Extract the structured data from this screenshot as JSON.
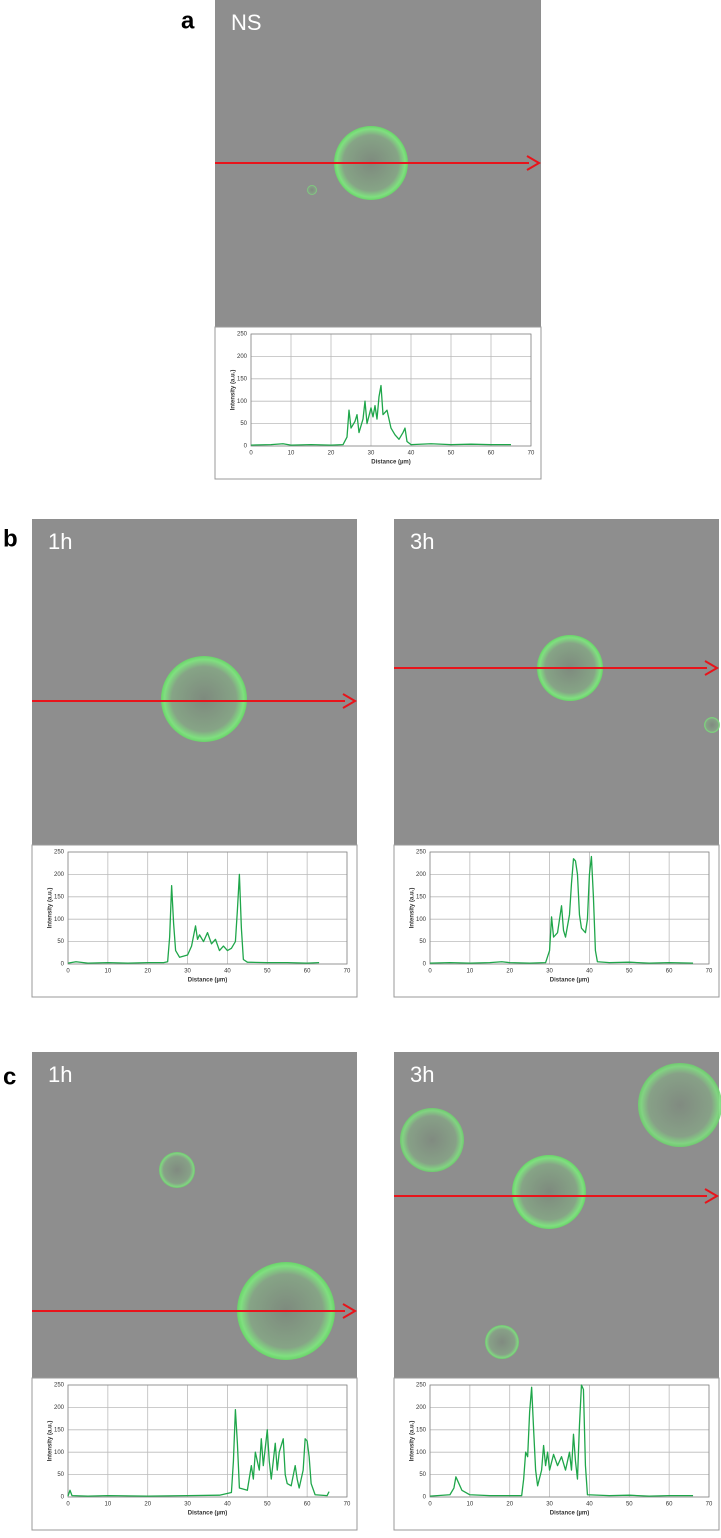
{
  "figure": {
    "panel_letters": [
      "a",
      "b",
      "c"
    ]
  },
  "chart_data": [
    {
      "type": "line",
      "label": "NS",
      "xlabel": "Distance (µm)",
      "ylabel": "Intensity (a.u.)",
      "xlim": [
        0,
        70
      ],
      "ylim": [
        0,
        250
      ],
      "xticks": [
        0,
        10,
        20,
        30,
        40,
        50,
        60,
        70
      ],
      "yticks": [
        0,
        50,
        100,
        150,
        200,
        250
      ],
      "grid": true,
      "color": "#1fa64a",
      "x": [
        0,
        5,
        8,
        10,
        15,
        20,
        23,
        24,
        24.5,
        25,
        26,
        26.5,
        27,
        28,
        28.5,
        29,
        30,
        30.5,
        31,
        31.5,
        32,
        32.5,
        33,
        34,
        35,
        36,
        37,
        38,
        38.5,
        39,
        40,
        45,
        50,
        55,
        60,
        65
      ],
      "values": [
        2,
        3,
        5,
        2,
        3,
        2,
        3,
        20,
        80,
        40,
        55,
        70,
        30,
        60,
        100,
        50,
        85,
        65,
        90,
        60,
        110,
        135,
        70,
        80,
        40,
        25,
        15,
        30,
        40,
        10,
        3,
        5,
        3,
        4,
        3,
        3
      ]
    },
    {
      "type": "line",
      "label": "1h",
      "xlabel": "Distance (µm)",
      "ylabel": "Intensity (a.u.)",
      "xlim": [
        0,
        70
      ],
      "ylim": [
        0,
        250
      ],
      "xticks": [
        0,
        10,
        20,
        30,
        40,
        50,
        60,
        70
      ],
      "yticks": [
        0,
        50,
        100,
        150,
        200,
        250
      ],
      "grid": true,
      "color": "#1fa64a",
      "x": [
        0,
        2,
        5,
        10,
        15,
        20,
        24,
        25,
        25.5,
        26,
        26.5,
        27,
        28,
        30,
        31,
        32,
        32.5,
        33,
        34,
        35,
        36,
        37,
        38,
        39,
        40,
        41,
        42,
        42.5,
        43,
        43.5,
        44,
        45,
        50,
        55,
        60,
        63
      ],
      "values": [
        2,
        5,
        2,
        3,
        2,
        3,
        3,
        5,
        60,
        175,
        90,
        30,
        15,
        20,
        40,
        85,
        55,
        65,
        50,
        70,
        45,
        55,
        30,
        40,
        30,
        35,
        50,
        120,
        200,
        80,
        10,
        4,
        3,
        3,
        2,
        3
      ]
    },
    {
      "type": "line",
      "label": "3h",
      "xlabel": "Distance (µm)",
      "ylabel": "Intensity (a.u.)",
      "xlim": [
        0,
        70
      ],
      "ylim": [
        0,
        250
      ],
      "xticks": [
        0,
        10,
        20,
        30,
        40,
        50,
        60,
        70
      ],
      "yticks": [
        0,
        50,
        100,
        150,
        200,
        250
      ],
      "grid": true,
      "color": "#1fa64a",
      "x": [
        0,
        5,
        10,
        15,
        18,
        20,
        25,
        29,
        30,
        30.5,
        31,
        32,
        32.5,
        33,
        33.5,
        34,
        35,
        35.5,
        36,
        36.5,
        37,
        37.5,
        38,
        39,
        39.5,
        40,
        40.5,
        41,
        41.5,
        42,
        45,
        50,
        55,
        60,
        66
      ],
      "values": [
        2,
        3,
        2,
        3,
        5,
        3,
        2,
        3,
        30,
        105,
        60,
        70,
        100,
        130,
        75,
        60,
        110,
        180,
        235,
        230,
        200,
        110,
        80,
        70,
        100,
        200,
        240,
        150,
        30,
        5,
        3,
        4,
        2,
        3,
        2
      ]
    },
    {
      "type": "line",
      "label": "1h",
      "xlabel": "Distance (µm)",
      "ylabel": "Intensity (a.u.)",
      "xlim": [
        0,
        70
      ],
      "ylim": [
        0,
        250
      ],
      "xticks": [
        0,
        10,
        20,
        30,
        40,
        50,
        60,
        70
      ],
      "yticks": [
        0,
        50,
        100,
        150,
        200,
        250
      ],
      "grid": true,
      "color": "#1fa64a",
      "x": [
        0,
        0.5,
        1,
        5,
        10,
        20,
        30,
        38,
        41,
        41.5,
        42,
        42.5,
        43,
        45,
        46,
        46.5,
        47,
        48,
        48.5,
        49,
        50,
        50.5,
        51,
        52,
        52.5,
        53,
        54,
        54.5,
        55,
        56,
        57,
        57.5,
        58,
        59,
        59.5,
        60,
        60.5,
        61,
        62,
        65,
        65.5
      ],
      "values": [
        2,
        15,
        3,
        2,
        3,
        2,
        3,
        4,
        10,
        80,
        195,
        120,
        20,
        15,
        70,
        40,
        100,
        60,
        130,
        70,
        150,
        80,
        40,
        120,
        60,
        100,
        130,
        50,
        30,
        25,
        70,
        40,
        20,
        60,
        130,
        125,
        90,
        30,
        5,
        3,
        12
      ]
    },
    {
      "type": "line",
      "label": "3h",
      "xlabel": "Distance (µm)",
      "ylabel": "Intensity (a.u.)",
      "xlim": [
        0,
        70
      ],
      "ylim": [
        0,
        250
      ],
      "xticks": [
        0,
        10,
        20,
        30,
        40,
        50,
        60,
        70
      ],
      "yticks": [
        0,
        50,
        100,
        150,
        200,
        250
      ],
      "grid": true,
      "color": "#1fa64a",
      "x": [
        0,
        5,
        6,
        6.5,
        7,
        8,
        9,
        10,
        15,
        20,
        23,
        23.5,
        24,
        24.5,
        25,
        25.5,
        26,
        26.5,
        27,
        28,
        28.5,
        29,
        29.5,
        30,
        31,
        32,
        33,
        34,
        35,
        35.5,
        36,
        36.5,
        37,
        37.5,
        38,
        38.5,
        39,
        39.5,
        45,
        50,
        55,
        60,
        66
      ],
      "values": [
        2,
        5,
        20,
        45,
        35,
        15,
        10,
        5,
        3,
        3,
        3,
        40,
        100,
        90,
        190,
        245,
        150,
        60,
        25,
        60,
        115,
        70,
        100,
        60,
        95,
        70,
        90,
        60,
        100,
        60,
        140,
        80,
        40,
        160,
        250,
        240,
        70,
        5,
        3,
        4,
        2,
        3,
        3
      ]
    }
  ]
}
